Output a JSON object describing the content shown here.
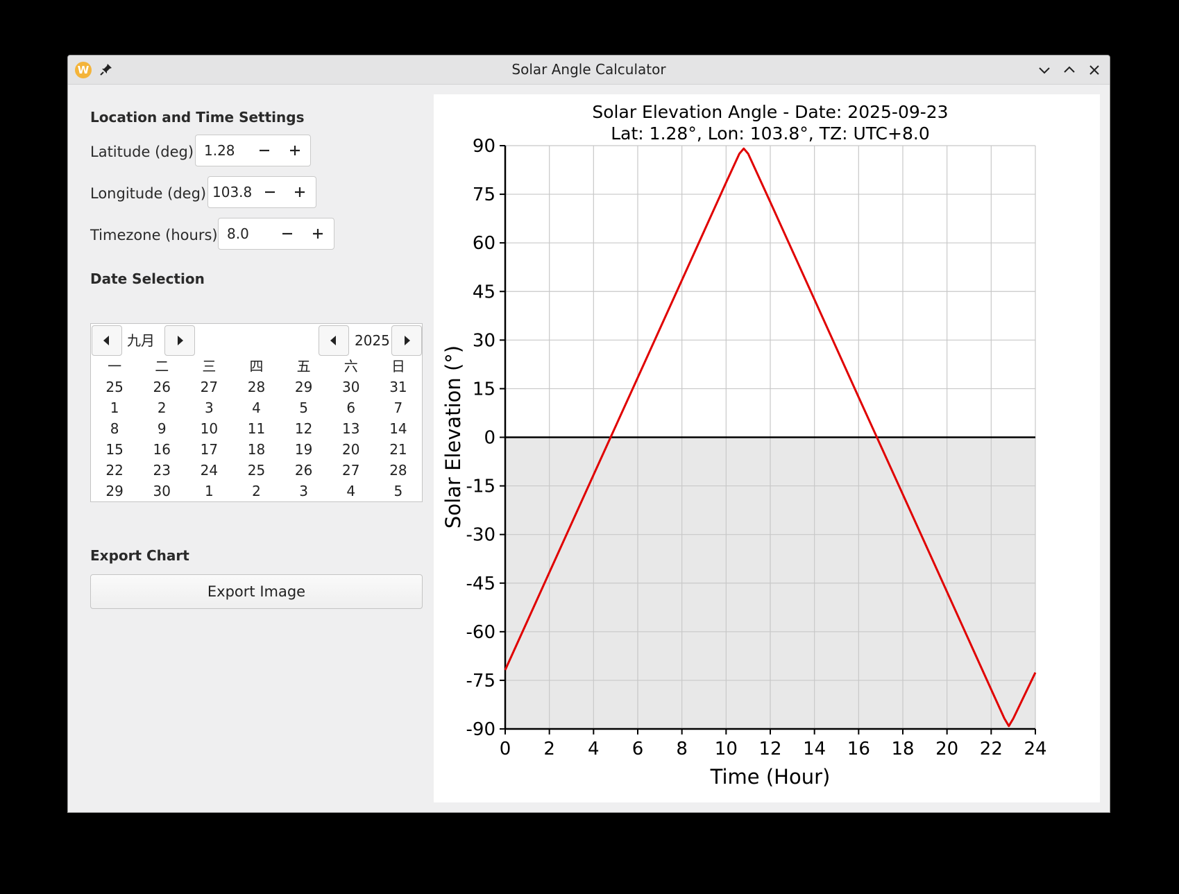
{
  "window": {
    "title": "Solar Angle Calculator",
    "app_icon_letter": "W"
  },
  "settings": {
    "section_title": "Location and Time Settings",
    "latitude": {
      "label": "Latitude (deg):",
      "value": "1.28"
    },
    "longitude": {
      "label": "Longitude (deg):",
      "value": "103.8"
    },
    "timezone": {
      "label": "Timezone (hours):",
      "value": "8.0"
    }
  },
  "date": {
    "section_title": "Date Selection",
    "month": "九月",
    "year": "2025",
    "weekdays": [
      "一",
      "二",
      "三",
      "四",
      "五",
      "六",
      "日"
    ],
    "weeks": [
      [
        "25",
        "26",
        "27",
        "28",
        "29",
        "30",
        "31"
      ],
      [
        "1",
        "2",
        "3",
        "4",
        "5",
        "6",
        "7"
      ],
      [
        "8",
        "9",
        "10",
        "11",
        "12",
        "13",
        "14"
      ],
      [
        "15",
        "16",
        "17",
        "18",
        "19",
        "20",
        "21"
      ],
      [
        "22",
        "23",
        "24",
        "25",
        "26",
        "27",
        "28"
      ],
      [
        "29",
        "30",
        "1",
        "2",
        "3",
        "4",
        "5"
      ]
    ]
  },
  "export": {
    "section_title": "Export Chart",
    "button_label": "Export Image"
  },
  "chart_data": {
    "type": "line",
    "title": "Solar Elevation Angle - Date: 2025-09-23",
    "subtitle": "Lat: 1.28°, Lon: 103.8°, TZ: UTC+8.0",
    "xlabel": "Time (Hour)",
    "ylabel": "Solar Elevation (°)",
    "xlim": [
      0,
      24
    ],
    "ylim": [
      -90,
      90
    ],
    "xticks": [
      0,
      2,
      4,
      6,
      8,
      10,
      12,
      14,
      16,
      18,
      20,
      22,
      24
    ],
    "yticks": [
      90,
      75,
      60,
      45,
      30,
      15,
      0,
      -15,
      -30,
      -45,
      -60,
      -75,
      -90
    ],
    "grid": true,
    "below_horizon_shaded": true,
    "colors": {
      "line": "#e00000",
      "shade": "#e8e8e8",
      "grid": "#c8c8c8"
    },
    "series": [
      {
        "x": [
          0,
          2,
          4,
          6,
          8,
          10,
          10.6,
          10.8,
          11.0,
          12,
          14,
          16,
          18,
          20,
          22,
          22.6,
          22.8,
          23.0,
          24
        ],
        "values": [
          -71.8,
          -41.7,
          -11.6,
          18.4,
          48.5,
          78.6,
          87.5,
          89.1,
          87.5,
          72.6,
          42.5,
          12.4,
          -17.6,
          -47.7,
          -77.8,
          -86.8,
          -89.1,
          -86.8,
          -72.6
        ]
      }
    ]
  }
}
